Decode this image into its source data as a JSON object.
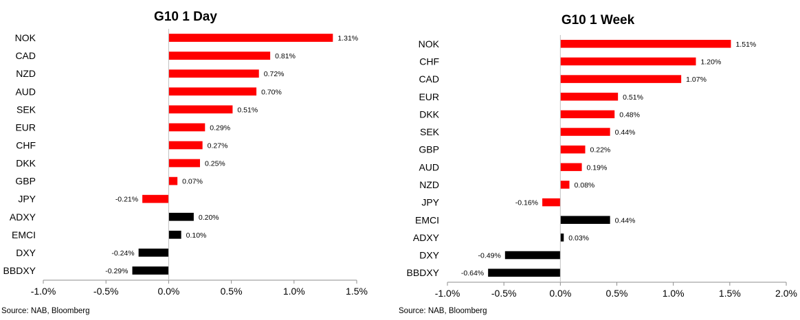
{
  "chart_data": [
    {
      "type": "bar",
      "orientation": "horizontal",
      "title": "G10 1 Day",
      "source": "Source: NAB, Bloomberg",
      "xlim": [
        -0.01,
        0.015
      ],
      "xticks": [
        -0.01,
        -0.005,
        0,
        0.005,
        0.01,
        0.015
      ],
      "xtick_labels": [
        "-1.0%",
        "-0.5%",
        "0.0%",
        "0.5%",
        "1.0%",
        "1.5%"
      ],
      "categories": [
        "NOK",
        "CAD",
        "NZD",
        "AUD",
        "SEK",
        "EUR",
        "CHF",
        "DKK",
        "GBP",
        "JPY",
        "ADXY",
        "EMCI",
        "DXY",
        "BBDXY"
      ],
      "values": [
        0.0131,
        0.0081,
        0.0072,
        0.007,
        0.0051,
        0.0029,
        0.0027,
        0.0025,
        0.0007,
        -0.0021,
        0.002,
        0.001,
        -0.0024,
        -0.0029
      ],
      "value_labels": [
        "1.31%",
        "0.81%",
        "0.72%",
        "0.70%",
        "0.51%",
        "0.29%",
        "0.27%",
        "0.25%",
        "0.07%",
        "-0.21%",
        "0.20%",
        "0.10%",
        "-0.24%",
        "-0.29%"
      ],
      "bar_colors": [
        "#ff0000",
        "#ff0000",
        "#ff0000",
        "#ff0000",
        "#ff0000",
        "#ff0000",
        "#ff0000",
        "#ff0000",
        "#ff0000",
        "#ff0000",
        "#000000",
        "#000000",
        "#000000",
        "#000000"
      ],
      "grid": false
    },
    {
      "type": "bar",
      "orientation": "horizontal",
      "title": "G10 1 Week",
      "source": "Source: NAB, Bloomberg",
      "xlim": [
        -0.01,
        0.02
      ],
      "xticks": [
        -0.01,
        -0.005,
        0,
        0.005,
        0.01,
        0.015,
        0.02
      ],
      "xtick_labels": [
        "-1.0%",
        "-0.5%",
        "0.0%",
        "0.5%",
        "1.0%",
        "1.5%",
        "2.0%"
      ],
      "categories": [
        "NOK",
        "CHF",
        "CAD",
        "EUR",
        "DKK",
        "SEK",
        "GBP",
        "AUD",
        "NZD",
        "JPY",
        "EMCI",
        "ADXY",
        "DXY",
        "BBDXY"
      ],
      "values": [
        0.0151,
        0.012,
        0.0107,
        0.0051,
        0.0048,
        0.0044,
        0.0022,
        0.0019,
        0.0008,
        -0.0016,
        0.0044,
        0.0003,
        -0.0049,
        -0.0064
      ],
      "value_labels": [
        "1.51%",
        "1.20%",
        "1.07%",
        "0.51%",
        "0.48%",
        "0.44%",
        "0.22%",
        "0.19%",
        "0.08%",
        "-0.16%",
        "0.44%",
        "0.03%",
        "-0.49%",
        "-0.64%"
      ],
      "bar_colors": [
        "#ff0000",
        "#ff0000",
        "#ff0000",
        "#ff0000",
        "#ff0000",
        "#ff0000",
        "#ff0000",
        "#ff0000",
        "#ff0000",
        "#ff0000",
        "#000000",
        "#000000",
        "#000000",
        "#000000"
      ],
      "grid": false
    }
  ]
}
